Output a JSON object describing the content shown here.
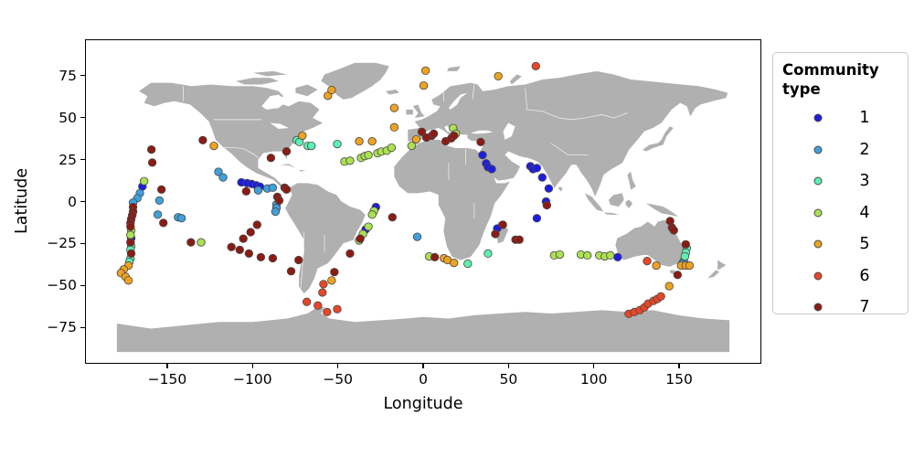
{
  "figure": {
    "xlabel": "Longitude",
    "ylabel": "Latitude",
    "x_ticks": [
      {
        "value": -150,
        "label": "−150"
      },
      {
        "value": -100,
        "label": "−100"
      },
      {
        "value": -50,
        "label": "−50"
      },
      {
        "value": 0,
        "label": "0"
      },
      {
        "value": 50,
        "label": "50"
      },
      {
        "value": 100,
        "label": "100"
      },
      {
        "value": 150,
        "label": "150"
      }
    ],
    "y_ticks": [
      {
        "value": 75,
        "label": "75"
      },
      {
        "value": 50,
        "label": "50"
      },
      {
        "value": 25,
        "label": "25"
      },
      {
        "value": 0,
        "label": "0"
      },
      {
        "value": -25,
        "label": "−25"
      },
      {
        "value": -50,
        "label": "−50"
      },
      {
        "value": -75,
        "label": "−75"
      }
    ]
  },
  "legend": {
    "title": "Community type",
    "entries": [
      {
        "label": "1",
        "color": "#1d1de1"
      },
      {
        "label": "2",
        "color": "#3fa0dc"
      },
      {
        "label": "3",
        "color": "#5df0b1"
      },
      {
        "label": "4",
        "color": "#abe152"
      },
      {
        "label": "5",
        "color": "#eea320"
      },
      {
        "label": "6",
        "color": "#e84628"
      },
      {
        "label": "7",
        "color": "#8c1b13"
      }
    ]
  },
  "colors": {
    "land": "#b0b0b0",
    "ocean": "#ffffff",
    "country_border": "#ffffff",
    "marker_edge": "#4a4a4a",
    "frame": "#000000"
  },
  "chart_data": {
    "type": "scatter",
    "title": "",
    "xlabel": "Longitude",
    "ylabel": "Latitude",
    "xlim": [
      -198,
      198
    ],
    "ylim": [
      -96.5,
      96.5
    ],
    "grid": false,
    "basemap": "world-landmasses-gray",
    "legend_title": "Community type",
    "legend_position": "right",
    "series": [
      {
        "name": "1",
        "color": "#1d1de1",
        "points": [
          [
            -165,
            9
          ],
          [
            -171.6,
            -22
          ],
          [
            -106.8,
            11.5
          ],
          [
            -103.5,
            11
          ],
          [
            -100.8,
            10.5
          ],
          [
            -98.1,
            9.7
          ],
          [
            -95.9,
            8.9
          ],
          [
            34.9,
            27.8
          ],
          [
            37,
            22.8
          ],
          [
            38.1,
            20.6
          ],
          [
            40.3,
            19.4
          ],
          [
            63,
            21.1
          ],
          [
            64.6,
            19.4
          ],
          [
            66.8,
            20
          ],
          [
            70,
            14.4
          ],
          [
            73.8,
            7.8
          ],
          [
            72.2,
            0
          ],
          [
            66.8,
            -10
          ],
          [
            43.5,
            -16.1
          ],
          [
            -27.8,
            -3.3
          ],
          [
            -33.8,
            -16.7
          ],
          [
            114.3,
            -33.3
          ]
        ]
      },
      {
        "name": "2",
        "color": "#3fa0dc",
        "points": [
          [
            -166.5,
            5
          ],
          [
            -168,
            2
          ],
          [
            -170.5,
            -0.6
          ],
          [
            -155,
            0.6
          ],
          [
            -156,
            -7.8
          ],
          [
            -120.3,
            17.8
          ],
          [
            -117.6,
            14.4
          ],
          [
            -144,
            -9.4
          ],
          [
            -142,
            -10
          ],
          [
            -97,
            6.7
          ],
          [
            -91.6,
            7.8
          ],
          [
            -88.4,
            8.3
          ],
          [
            -86.2,
            -1.7
          ],
          [
            -86.2,
            -3.9
          ],
          [
            -86.8,
            -6.1
          ],
          [
            -3.5,
            -21.1
          ],
          [
            153.2,
            -35.6
          ],
          [
            152.2,
            -37.2
          ]
        ]
      },
      {
        "name": "3",
        "color": "#5df0b1",
        "points": [
          [
            -171.6,
            -26.7
          ],
          [
            -172,
            -28.9
          ],
          [
            -172,
            -33.9
          ],
          [
            -172.7,
            -36.1
          ],
          [
            -74.3,
            36.7
          ],
          [
            -72.7,
            35.6
          ],
          [
            -67.8,
            33.3
          ],
          [
            -65.7,
            33.3
          ],
          [
            -50.5,
            34.4
          ],
          [
            26.2,
            -37.2
          ],
          [
            38.1,
            -31.1
          ],
          [
            154.9,
            -27.8
          ],
          [
            154.3,
            -30.6
          ],
          [
            153.8,
            -32.8
          ]
        ]
      },
      {
        "name": "4",
        "color": "#abe152",
        "points": [
          [
            -164,
            12.2
          ],
          [
            -171.6,
            -17.2
          ],
          [
            -172,
            -20
          ],
          [
            -130.5,
            -24.4
          ],
          [
            -46.2,
            23.9
          ],
          [
            -43,
            24.4
          ],
          [
            -36.5,
            26.1
          ],
          [
            -34.3,
            27.2
          ],
          [
            -32.2,
            27.8
          ],
          [
            -26.8,
            28.9
          ],
          [
            -24.6,
            29.9
          ],
          [
            -21.4,
            30.4
          ],
          [
            -18.6,
            32.2
          ],
          [
            -6.8,
            33.3
          ],
          [
            17.6,
            43.9
          ],
          [
            19.2,
            40.6
          ],
          [
            -28.9,
            -5.6
          ],
          [
            -30,
            -7.8
          ],
          [
            -32.2,
            -15
          ],
          [
            -35.4,
            -19.4
          ],
          [
            -37.6,
            -23.3
          ],
          [
            3.5,
            -32.8
          ],
          [
            77,
            -32.2
          ],
          [
            80.3,
            -31.7
          ],
          [
            92.7,
            -31.7
          ],
          [
            96.5,
            -32.2
          ],
          [
            103.5,
            -32.2
          ],
          [
            106.8,
            -32.8
          ],
          [
            110,
            -32.2
          ]
        ]
      },
      {
        "name": "5",
        "color": "#eea320",
        "points": [
          [
            -173.2,
            -38.3
          ],
          [
            -176,
            -40.6
          ],
          [
            -177.6,
            -42.8
          ],
          [
            -174.9,
            -45
          ],
          [
            -173.2,
            -47.2
          ],
          [
            -123,
            33.3
          ],
          [
            -56,
            63.3
          ],
          [
            -53.8,
            66.7
          ],
          [
            -17,
            56
          ],
          [
            -17,
            44.4
          ],
          [
            1.4,
            78.3
          ],
          [
            0.3,
            69.4
          ],
          [
            44.1,
            75
          ],
          [
            -71,
            39.4
          ],
          [
            -37.6,
            36
          ],
          [
            -30,
            36
          ],
          [
            -4.1,
            37.2
          ],
          [
            12.2,
            -33.9
          ],
          [
            14.3,
            -35
          ],
          [
            18.1,
            -36.7
          ],
          [
            -53.8,
            -47.2
          ],
          [
            144.6,
            -50.6
          ],
          [
            137,
            -38.3
          ],
          [
            151.6,
            -38.3
          ],
          [
            154.3,
            -38.3
          ],
          [
            156.5,
            -38.3
          ]
        ]
      },
      {
        "name": "6",
        "color": "#e84628",
        "points": [
          [
            66.2,
            81
          ],
          [
            -58.6,
            -49.4
          ],
          [
            -59.2,
            -54.4
          ],
          [
            -68.4,
            -60
          ],
          [
            -61.9,
            -62.2
          ],
          [
            -56.5,
            -66.1
          ],
          [
            -50.5,
            -64.4
          ],
          [
            131.6,
            -35.6
          ],
          [
            120.8,
            -67.2
          ],
          [
            124.1,
            -66.1
          ],
          [
            127.3,
            -65
          ],
          [
            130,
            -63.3
          ],
          [
            132.2,
            -61.1
          ],
          [
            135.4,
            -59.4
          ],
          [
            137.6,
            -58.3
          ],
          [
            139.7,
            -56.7
          ]
        ]
      },
      {
        "name": "7",
        "color": "#8c1b13",
        "points": [
          [
            -129.5,
            36.7
          ],
          [
            -159.7,
            31.1
          ],
          [
            -159.2,
            23.3
          ],
          [
            -153.8,
            7.2
          ],
          [
            -152.7,
            -12.8
          ],
          [
            -170.5,
            -3.3
          ],
          [
            -170.5,
            -6.1
          ],
          [
            -171,
            -8.3
          ],
          [
            -171.6,
            -10.6
          ],
          [
            -172,
            -12.8
          ],
          [
            -172,
            -15
          ],
          [
            -172,
            -24.4
          ],
          [
            -171.6,
            -31.1
          ],
          [
            -136.5,
            -24.4
          ],
          [
            -104,
            6.1
          ],
          [
            -81.4,
            8.3
          ],
          [
            -80.3,
            7.2
          ],
          [
            -85.7,
            2.8
          ],
          [
            -84.6,
            0.6
          ],
          [
            -97.6,
            -13.9
          ],
          [
            -101.4,
            -18.3
          ],
          [
            -105.7,
            -22.2
          ],
          [
            -112.7,
            -27.2
          ],
          [
            -107.8,
            -28.9
          ],
          [
            -102.4,
            -31.1
          ],
          [
            -95.4,
            -33.3
          ],
          [
            -88.4,
            -33.9
          ],
          [
            -73.2,
            -35
          ],
          [
            -77.6,
            -41.7
          ],
          [
            -52.2,
            -42.2
          ],
          [
            -89.5,
            26.1
          ],
          [
            -80.3,
            30
          ],
          [
            -0.8,
            41.7
          ],
          [
            1.9,
            38.3
          ],
          [
            5.1,
            39.4
          ],
          [
            6.2,
            40.6
          ],
          [
            13.2,
            36.1
          ],
          [
            16.5,
            37.8
          ],
          [
            18.1,
            39.4
          ],
          [
            33.8,
            35.6
          ],
          [
            72.7,
            -2.2
          ],
          [
            46.8,
            -13.9
          ],
          [
            42.4,
            -19.4
          ],
          [
            54.3,
            -22.8
          ],
          [
            56.5,
            -22.8
          ],
          [
            -18.1,
            -9.4
          ],
          [
            -37,
            -22.2
          ],
          [
            -43,
            -31.1
          ],
          [
            6.8,
            -33.3
          ],
          [
            145.1,
            -11.7
          ],
          [
            146.2,
            -15.6
          ],
          [
            147.3,
            -17.2
          ],
          [
            154.3,
            -25.6
          ],
          [
            149.5,
            -43.9
          ]
        ]
      }
    ]
  }
}
